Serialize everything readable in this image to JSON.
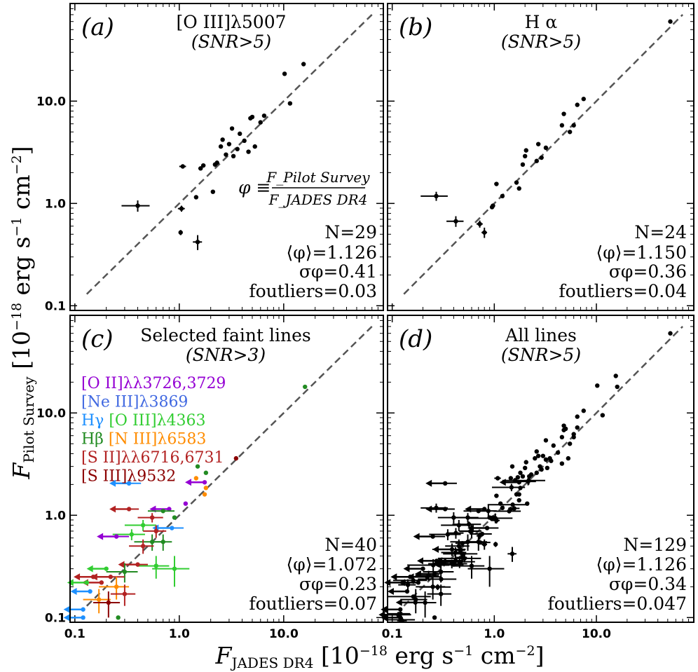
{
  "chart_data": [
    {
      "type": "scatter",
      "panel_label": "(a)",
      "title": "[O III]λ5007",
      "subtitle": "(SNR>5)",
      "xlim": [
        0.09,
        90
      ],
      "ylim": [
        0.09,
        90
      ],
      "xscale": "log",
      "yscale": "log",
      "yticks": [
        "0.1",
        "1.0",
        "10.0"
      ],
      "phi_definition": {
        "lhs": "φ ≡",
        "numerator": "F_Pilot Survey",
        "denominator": "F_JADES DR4"
      },
      "stats": {
        "N": "N=29",
        "phi_mean": "⟨φ⟩=1.126",
        "sigma": "σφ=0.41",
        "f_outliers": "foutliers=0.03"
      },
      "points": [
        {
          "x": 0.4,
          "y": 0.95,
          "xerr": 0.12,
          "yerr": 0.12
        },
        {
          "x": 1.05,
          "y": 0.89,
          "xerr": 0.08,
          "yerr": 0.06
        },
        {
          "x": 1.03,
          "y": 0.52,
          "xerr": 0.03,
          "yerr": 0.03
        },
        {
          "x": 1.5,
          "y": 0.42,
          "xerr": 0.15,
          "yerr": 0.07
        },
        {
          "x": 1.08,
          "y": 2.3,
          "xerr": 0.08,
          "yerr": 0.05
        },
        {
          "x": 1.45,
          "y": 1.15,
          "xerr": 0.0,
          "yerr": 0.0
        },
        {
          "x": 1.6,
          "y": 2.2,
          "xerr": 0.08,
          "yerr": 0.06
        },
        {
          "x": 1.7,
          "y": 2.35,
          "xerr": 0.08,
          "yerr": 0.0
        },
        {
          "x": 2.1,
          "y": 1.3,
          "xerr": 0.0,
          "yerr": 0.0
        },
        {
          "x": 2.2,
          "y": 2.4,
          "xerr": 0.0,
          "yerr": 0.0
        },
        {
          "x": 2.3,
          "y": 2.5,
          "xerr": 0.0,
          "yerr": 0.0
        },
        {
          "x": 2.5,
          "y": 3.6,
          "xerr": 0.0,
          "yerr": 0.0
        },
        {
          "x": 2.6,
          "y": 4.2,
          "xerr": 0.0,
          "yerr": 0.0
        },
        {
          "x": 2.8,
          "y": 3.0,
          "xerr": 0.0,
          "yerr": 0.0
        },
        {
          "x": 3.0,
          "y": 3.8,
          "xerr": 0.0,
          "yerr": 0.0
        },
        {
          "x": 3.2,
          "y": 5.4,
          "xerr": 0.0,
          "yerr": 0.0
        },
        {
          "x": 3.3,
          "y": 2.9,
          "xerr": 0.0,
          "yerr": 0.0
        },
        {
          "x": 3.6,
          "y": 3.4,
          "xerr": 0.0,
          "yerr": 0.0
        },
        {
          "x": 3.8,
          "y": 4.8,
          "xerr": 0.0,
          "yerr": 0.0
        },
        {
          "x": 4.2,
          "y": 4.1,
          "xerr": 0.0,
          "yerr": 0.0
        },
        {
          "x": 4.6,
          "y": 3.2,
          "xerr": 0.0,
          "yerr": 0.0
        },
        {
          "x": 4.8,
          "y": 6.8,
          "xerr": 0.0,
          "yerr": 0.0
        },
        {
          "x": 5.0,
          "y": 7.0,
          "xerr": 0.0,
          "yerr": 0.0
        },
        {
          "x": 5.3,
          "y": 3.6,
          "xerr": 0.0,
          "yerr": 0.0
        },
        {
          "x": 6.0,
          "y": 6.2,
          "xerr": 0.0,
          "yerr": 0.0
        },
        {
          "x": 6.5,
          "y": 7.2,
          "xerr": 0.0,
          "yerr": 0.0
        },
        {
          "x": 10.2,
          "y": 18.5,
          "xerr": 0.0,
          "yerr": 0.0
        },
        {
          "x": 11.5,
          "y": 9.5,
          "xerr": 0.0,
          "yerr": 0.0
        },
        {
          "x": 15.5,
          "y": 23.0,
          "xerr": 0.0,
          "yerr": 0.0
        }
      ]
    },
    {
      "type": "scatter",
      "panel_label": "(b)",
      "title": "H α",
      "subtitle": "(SNR>5)",
      "xlim": [
        0.09,
        90
      ],
      "ylim": [
        0.09,
        90
      ],
      "xscale": "log",
      "yscale": "log",
      "stats": {
        "N": "N=24",
        "phi_mean": "⟨φ⟩=1.150",
        "sigma": "σφ=0.36",
        "f_outliers": "foutliers=0.04"
      },
      "points": [
        {
          "x": 0.27,
          "y": 1.18,
          "xerr": 0.08,
          "yerr": 0.12
        },
        {
          "x": 0.42,
          "y": 0.67,
          "xerr": 0.08,
          "yerr": 0.08
        },
        {
          "x": 0.72,
          "y": 0.63,
          "xerr": 0.05,
          "yerr": 0.05
        },
        {
          "x": 0.8,
          "y": 0.52,
          "xerr": 0.05,
          "yerr": 0.06
        },
        {
          "x": 0.95,
          "y": 0.92,
          "xerr": 0.04,
          "yerr": 0.04
        },
        {
          "x": 0.97,
          "y": 0.95,
          "xerr": 0.0,
          "yerr": 0.0
        },
        {
          "x": 1.05,
          "y": 1.55,
          "xerr": 0.05,
          "yerr": 0.0
        },
        {
          "x": 1.2,
          "y": 1.18,
          "xerr": 0.05,
          "yerr": 0.0
        },
        {
          "x": 1.65,
          "y": 1.6,
          "xerr": 0.0,
          "yerr": 0.0
        },
        {
          "x": 1.75,
          "y": 1.4,
          "xerr": 0.0,
          "yerr": 0.0
        },
        {
          "x": 1.9,
          "y": 2.4,
          "xerr": 0.0,
          "yerr": 0.0
        },
        {
          "x": 2.05,
          "y": 3.3,
          "xerr": 0.08,
          "yerr": 0.05
        },
        {
          "x": 2.0,
          "y": 2.9,
          "xerr": 0.0,
          "yerr": 0.0
        },
        {
          "x": 2.6,
          "y": 2.6,
          "xerr": 0.0,
          "yerr": 0.0
        },
        {
          "x": 2.7,
          "y": 3.8,
          "xerr": 0.0,
          "yerr": 0.0
        },
        {
          "x": 2.9,
          "y": 2.8,
          "xerr": 0.0,
          "yerr": 0.0
        },
        {
          "x": 3.2,
          "y": 3.5,
          "xerr": 0.0,
          "yerr": 0.0
        },
        {
          "x": 4.6,
          "y": 5.8,
          "xerr": 0.0,
          "yerr": 0.0
        },
        {
          "x": 4.8,
          "y": 7.5,
          "xerr": 0.0,
          "yerr": 0.0
        },
        {
          "x": 5.5,
          "y": 5.0,
          "xerr": 0.0,
          "yerr": 0.0
        },
        {
          "x": 6.0,
          "y": 5.8,
          "xerr": 0.0,
          "yerr": 0.0
        },
        {
          "x": 6.5,
          "y": 9.2,
          "xerr": 0.0,
          "yerr": 0.0
        },
        {
          "x": 7.5,
          "y": 10.5,
          "xerr": 0.0,
          "yerr": 0.0
        },
        {
          "x": 53.0,
          "y": 60.0,
          "xerr": 0.0,
          "yerr": 0.0
        }
      ]
    },
    {
      "type": "scatter",
      "panel_label": "(c)",
      "title": "Selected faint lines",
      "subtitle": "(SNR>3)",
      "xlim": [
        0.09,
        90
      ],
      "ylim": [
        0.09,
        90
      ],
      "xscale": "log",
      "yscale": "log",
      "xticks": [
        "0.1",
        "1.0",
        "10.0"
      ],
      "yticks": [
        "0.1",
        "1.0",
        "10.0"
      ],
      "legend": [
        {
          "text": "[O II]λλ3726,3729",
          "color": "#9400d3"
        },
        {
          "text": "[Ne III]λ3869",
          "color": "#4169e1"
        },
        {
          "text": "Hγ",
          "color": "#1e90ff"
        },
        {
          "text": "[O III]λ4363",
          "color": "#32cd32"
        },
        {
          "text": "Hβ",
          "color": "#228b22"
        },
        {
          "text": "[N III]λ6583",
          "color": "#ff8c00"
        },
        {
          "text": "[S II]λλ6716,6731",
          "color": "#b22222"
        },
        {
          "text": "[S III]λ9532",
          "color": "#8b0000"
        }
      ],
      "stats": {
        "N": "N=40",
        "phi_mean": "⟨φ⟩=1.072",
        "sigma": "σφ=0.23",
        "f_outliers": "foutliers=0.07"
      },
      "points": [
        {
          "x": 16.0,
          "y": 18.0,
          "c": 4,
          "xerr": 0.0,
          "yerr": 0.0
        },
        {
          "x": 3.5,
          "y": 3.6,
          "c": 7,
          "xerr": 0.0,
          "yerr": 0.0
        },
        {
          "x": 1.5,
          "y": 3.0,
          "c": 4,
          "xerr": 0.0,
          "yerr": 0.0
        },
        {
          "x": 1.8,
          "y": 2.6,
          "c": 4,
          "xerr": 0.0,
          "yerr": 0.0
        },
        {
          "x": 1.75,
          "y": 2.1,
          "c": 0,
          "xerr": 0.0,
          "yerr": 0.0,
          "arrow": true
        },
        {
          "x": 1.8,
          "y": 1.85,
          "c": 5,
          "xerr": 0.0,
          "yerr": 0.0
        },
        {
          "x": 1.75,
          "y": 1.6,
          "c": 5,
          "xerr": 0.0,
          "yerr": 0.0
        },
        {
          "x": 0.33,
          "y": 2.05,
          "c": 2,
          "xerr": 0.1,
          "yerr": 0.0,
          "arrow": true,
          "leftarrow": true
        },
        {
          "x": 0.33,
          "y": 1.15,
          "c": 6,
          "xerr": 0.08,
          "yerr": 0.0,
          "arrow": true
        },
        {
          "x": 0.8,
          "y": 1.15,
          "c": 0,
          "xerr": 0.0,
          "yerr": 0.0,
          "arrow": true
        },
        {
          "x": 0.7,
          "y": 1.1,
          "c": 4,
          "xerr": 0.2,
          "yerr": 0.0
        },
        {
          "x": 0.55,
          "y": 0.95,
          "c": 6,
          "xerr": 0.15,
          "yerr": 0.1
        },
        {
          "x": 0.9,
          "y": 0.95,
          "c": 4,
          "xerr": 0.0,
          "yerr": 0.0
        },
        {
          "x": 0.85,
          "y": 0.75,
          "c": 2,
          "xerr": 0.25,
          "yerr": 0.0,
          "arrow": true
        },
        {
          "x": 0.45,
          "y": 0.8,
          "c": 3,
          "xerr": 0.15,
          "yerr": 0.1
        },
        {
          "x": 0.6,
          "y": 0.7,
          "c": 6,
          "xerr": 0.15,
          "yerr": 0.1
        },
        {
          "x": 0.35,
          "y": 0.65,
          "c": 3,
          "xerr": 0.12,
          "yerr": 0.08
        },
        {
          "x": 0.25,
          "y": 0.62,
          "c": 0,
          "xerr": 0.08,
          "yerr": 0.0,
          "arrow": true
        },
        {
          "x": 0.55,
          "y": 0.55,
          "c": 4,
          "xerr": 0.18,
          "yerr": 0.1
        },
        {
          "x": 0.45,
          "y": 0.5,
          "c": 6,
          "xerr": 0.12,
          "yerr": 0.08
        },
        {
          "x": 0.7,
          "y": 0.55,
          "c": 4,
          "xerr": 0.15,
          "yerr": 0.1
        },
        {
          "x": 0.9,
          "y": 0.3,
          "c": 3,
          "xerr": 0.35,
          "yerr": 0.1
        },
        {
          "x": 0.6,
          "y": 0.32,
          "c": 3,
          "xerr": 0.2,
          "yerr": 0.08
        },
        {
          "x": 0.4,
          "y": 0.33,
          "c": 6,
          "xerr": 0.1,
          "yerr": 0.0,
          "arrow": true
        },
        {
          "x": 0.3,
          "y": 0.28,
          "c": 4,
          "xerr": 0.1,
          "yerr": 0.06
        },
        {
          "x": 0.2,
          "y": 0.3,
          "c": 3,
          "xerr": 0.0,
          "yerr": 0.0,
          "arrow": true
        },
        {
          "x": 0.22,
          "y": 0.25,
          "c": 6,
          "xerr": 0.08,
          "yerr": 0.0,
          "arrow": true
        },
        {
          "x": 0.18,
          "y": 0.22,
          "c": 6,
          "xerr": 0.0,
          "yerr": 0.0,
          "arrow": true
        },
        {
          "x": 0.25,
          "y": 0.2,
          "c": 5,
          "xerr": 0.08,
          "yerr": 0.05
        },
        {
          "x": 0.15,
          "y": 0.25,
          "c": 6,
          "xerr": 0.0,
          "yerr": 0.0,
          "arrow": true
        },
        {
          "x": 0.14,
          "y": 0.18,
          "c": 2,
          "xerr": 0.0,
          "yerr": 0.0,
          "arrow": true
        },
        {
          "x": 0.17,
          "y": 0.15,
          "c": 5,
          "xerr": 0.05,
          "yerr": 0.04
        },
        {
          "x": 0.12,
          "y": 0.12,
          "c": 2,
          "xerr": 0.0,
          "yerr": 0.0,
          "arrow": true
        },
        {
          "x": 0.21,
          "y": 0.14,
          "c": 7,
          "xerr": 0.06,
          "yerr": 0.04
        },
        {
          "x": 0.3,
          "y": 0.17,
          "c": 6,
          "xerr": 0.08,
          "yerr": 0.04
        },
        {
          "x": 0.13,
          "y": 0.22,
          "c": 3,
          "xerr": 0.0,
          "yerr": 0.0,
          "arrow": true
        },
        {
          "x": 0.26,
          "y": 0.1,
          "c": 4,
          "xerr": 0.0,
          "yerr": 0.0
        },
        {
          "x": 0.12,
          "y": 0.1,
          "c": 2,
          "xerr": 0.0,
          "yerr": 0.0,
          "arrow": true
        },
        {
          "x": 1.15,
          "y": 1.3,
          "c": 0,
          "xerr": 0.0,
          "yerr": 0.0
        },
        {
          "x": 1.45,
          "y": 2.3,
          "c": 5,
          "xerr": 0.0,
          "yerr": 0.0
        }
      ]
    },
    {
      "type": "scatter",
      "panel_label": "(d)",
      "title": "All lines",
      "subtitle": "(SNR>5)",
      "xlim": [
        0.09,
        90
      ],
      "ylim": [
        0.09,
        90
      ],
      "xscale": "log",
      "yscale": "log",
      "xticks": [
        "0.1",
        "1.0",
        "10.0"
      ],
      "stats": {
        "N": "N=129",
        "phi_mean": "⟨φ⟩=1.126",
        "sigma": "σφ=0.34",
        "f_outliers": "foutliers=0.047"
      },
      "points_summary": "129 black points spanning 0.1–60 along the 1:1 line, with upper-limit arrows at low flux"
    }
  ],
  "axes": {
    "xlabel": "F_JADES DR4 [10^-18 erg s^-1 cm^-2]",
    "ylabel": "F_Pilot Survey [10^-18 erg s^-1 cm^-2]",
    "xlabel_main": "F",
    "xlabel_sub": "JADES DR4",
    "ylabel_main": "F",
    "ylabel_sub": "Pilot Survey",
    "units": "[10",
    "units_exp": "−18",
    "units_rest": " erg s",
    "units_exp2": "−1",
    "units_rest2": " cm",
    "units_exp3": "−2",
    "units_close": "]"
  }
}
